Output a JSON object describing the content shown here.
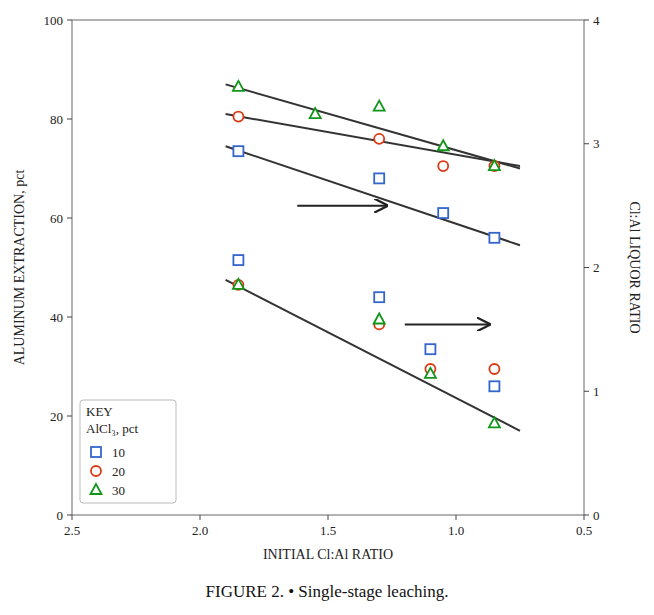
{
  "chart_data": {
    "type": "scatter",
    "title": "FIGURE 2. • Single-stage leaching.",
    "xlabel": "INITIAL Cl:Al RATIO",
    "ylabel": "ALUMINUM EXTRACTION, pct",
    "y2label": "Cl:Al LIQUOR RATIO",
    "xlim": [
      2.5,
      0.5
    ],
    "ylim": [
      0,
      100
    ],
    "y2lim": [
      0,
      4
    ],
    "xticks": [
      2.5,
      {
        "value": 2.0,
        "label": "2.0"
      },
      1.5,
      {
        "value": 1.0,
        "label": "1.0"
      },
      0.5
    ],
    "yticks": [
      0,
      20,
      40,
      60,
      80,
      100
    ],
    "y2ticks": [
      0,
      1,
      2,
      3,
      4
    ],
    "grid": false,
    "legend": "lower left",
    "annotations": [
      "KEY",
      "AlCl₃, pct"
    ],
    "arrows": [
      {
        "x_from": 1.62,
        "x_to": 1.27,
        "y": 62.5
      },
      {
        "x_from": 1.2,
        "x_to": 0.87,
        "y": 38.5
      }
    ],
    "series": [
      {
        "name": "10",
        "type": "scatter",
        "marker": "square",
        "x": [
          1.85,
          1.3,
          1.05,
          0.85
        ],
        "values": [
          73.5,
          68.0,
          61.0,
          56.0
        ]
      },
      {
        "name": "20",
        "type": "scatter",
        "marker": "circle",
        "x": [
          1.85,
          1.3,
          1.05,
          0.85
        ],
        "values": [
          80.5,
          76.0,
          70.5,
          70.5
        ]
      },
      {
        "name": "30",
        "type": "scatter",
        "marker": "triangle",
        "x": [
          1.85,
          1.55,
          1.3,
          1.05,
          0.85
        ],
        "values": [
          86.5,
          81.0,
          82.5,
          74.5,
          70.5
        ]
      },
      {
        "name": "10",
        "type": "scatter",
        "marker": "square",
        "x": [
          1.85,
          1.3,
          1.1,
          0.85
        ],
        "values": [
          51.5,
          44.0,
          33.5,
          26.0
        ]
      },
      {
        "name": "20",
        "type": "scatter",
        "marker": "circle",
        "x": [
          1.85,
          1.3,
          1.1,
          0.85
        ],
        "values": [
          46.5,
          38.5,
          29.5,
          29.5
        ]
      },
      {
        "name": "30",
        "type": "scatter",
        "marker": "triangle",
        "x": [
          1.85,
          1.3,
          1.1,
          0.85
        ],
        "values": [
          46.5,
          39.5,
          28.5,
          18.5
        ]
      },
      {
        "type": "line",
        "x": [
          1.9,
          0.75
        ],
        "values": [
          74.5,
          54.5
        ]
      },
      {
        "type": "line",
        "x": [
          1.9,
          0.75
        ],
        "values": [
          81.0,
          70.5
        ]
      },
      {
        "type": "line",
        "x": [
          1.9,
          0.75
        ],
        "values": [
          87.0,
          70.0
        ]
      },
      {
        "type": "line",
        "x": [
          1.9,
          0.75
        ],
        "values": [
          47.5,
          17.0
        ]
      }
    ]
  }
}
